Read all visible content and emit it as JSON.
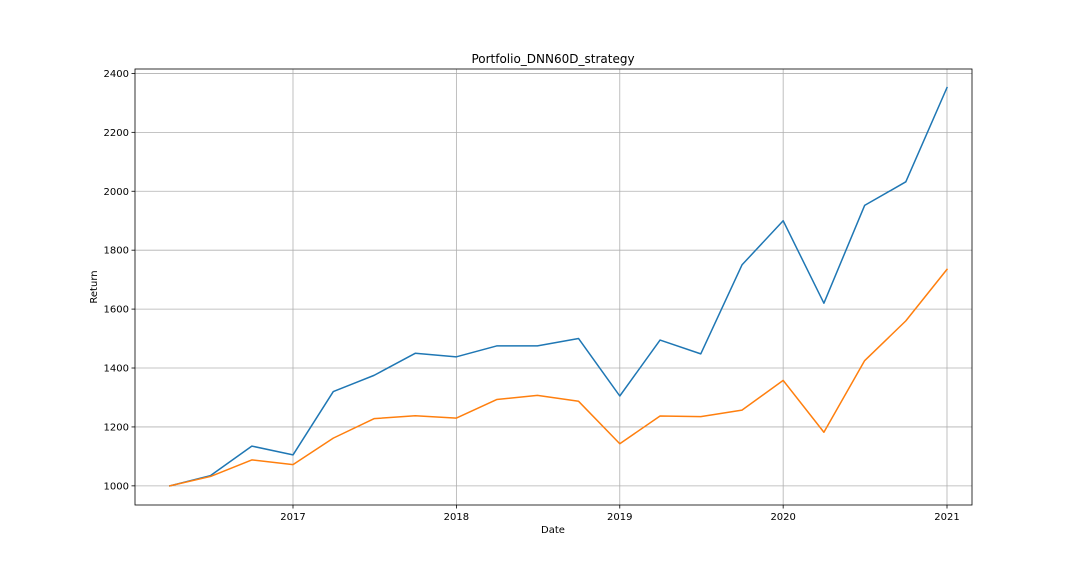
{
  "chart_data": {
    "type": "line",
    "title": "Portfolio_DNN60D_strategy",
    "xlabel": "Date",
    "ylabel": "Return",
    "x": [
      "2016-04-01",
      "2016-07-01",
      "2016-10-01",
      "2017-01-01",
      "2017-04-01",
      "2017-07-01",
      "2017-10-01",
      "2018-01-01",
      "2018-04-01",
      "2018-07-01",
      "2018-10-01",
      "2019-01-01",
      "2019-04-01",
      "2019-07-01",
      "2019-10-01",
      "2020-01-01",
      "2020-04-01",
      "2020-07-01",
      "2020-10-01",
      "2021-01-01"
    ],
    "x_tick_labels": [
      "2017",
      "2018",
      "2019",
      "2020",
      "2021"
    ],
    "y_ticks": [
      1000,
      1200,
      1400,
      1600,
      1800,
      2000,
      2200,
      2400
    ],
    "ylim": [
      935,
      2415
    ],
    "grid": true,
    "series": [
      {
        "color": "#1f77b4",
        "values": [
          1000,
          1035,
          1135,
          1105,
          1320,
          1375,
          1450,
          1438,
          1475,
          1475,
          1500,
          1305,
          1495,
          1448,
          1750,
          1900,
          1620,
          1952,
          2032,
          2352
        ]
      },
      {
        "color": "#ff7f0e",
        "values": [
          1000,
          1032,
          1088,
          1072,
          1162,
          1228,
          1238,
          1230,
          1293,
          1307,
          1287,
          1143,
          1237,
          1235,
          1257,
          1358,
          1182,
          1425,
          1560,
          1735
        ]
      }
    ]
  }
}
